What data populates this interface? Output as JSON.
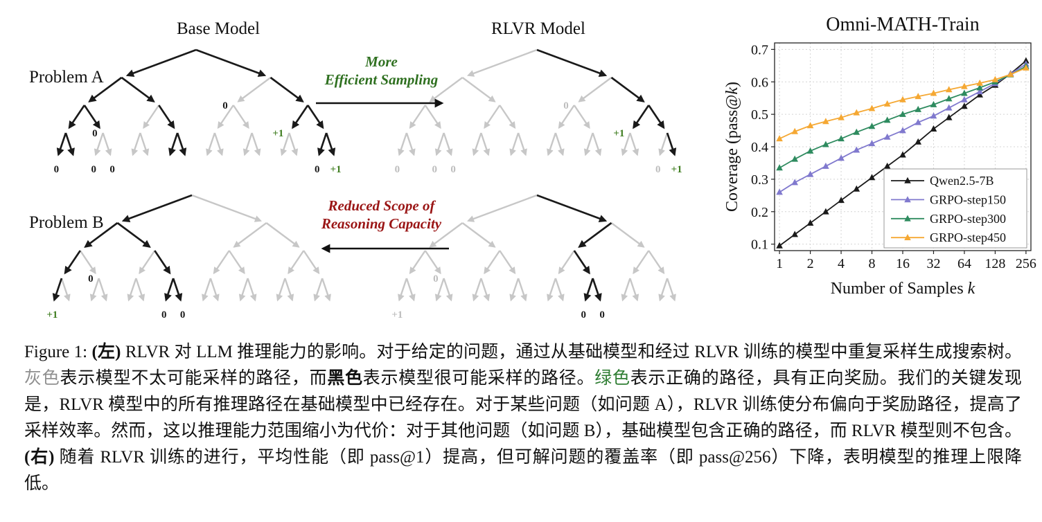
{
  "diagram": {
    "base_model_title": "Base Model",
    "rlvr_model_title": "RLVR Model",
    "problem_a_label": "Problem A",
    "problem_b_label": "Problem B",
    "top_arrow_label": "More\nEfficient Sampling",
    "bottom_arrow_label": "Reduced Scope of\nReasoning Capacity",
    "reward_labels": {
      "positive": "+1",
      "zero": "0"
    },
    "colors": {
      "black": "#1a1a1a",
      "gray": "#c7c7c7",
      "label_gray": "#bdbdbd",
      "green": "#3f7d20",
      "arrow_green": "#2f7020",
      "arrow_red": "#9a1515"
    },
    "trees": {
      "a_base": {
        "black": [
          "r0",
          "r1",
          "r00",
          "r01",
          "r11",
          "r000",
          "r001",
          "r011",
          "r110",
          "r111",
          "r0000",
          "r0001",
          "r0110",
          "r0111",
          "r1110",
          "r1111"
        ],
        "labels": [
          {
            "node": "r001",
            "text": "0",
            "color": "dark",
            "place": "left"
          },
          {
            "node": "r10",
            "text": "0",
            "color": "dark",
            "place": "left"
          },
          {
            "node": "r110",
            "text": "+1",
            "color": "green",
            "place": "left"
          },
          {
            "node": "r0000",
            "text": "0",
            "color": "dark",
            "place": "below"
          },
          {
            "node": "r0010",
            "text": "0",
            "color": "dark",
            "place": "below"
          },
          {
            "node": "r0011",
            "text": "0",
            "color": "dark",
            "place": "below"
          },
          {
            "node": "r1110",
            "text": "0",
            "color": "dark",
            "place": "below"
          },
          {
            "node": "r1111",
            "text": "+1",
            "color": "green",
            "place": "below"
          }
        ]
      },
      "a_rlvr": {
        "black": [
          "r1",
          "r11",
          "r110",
          "r111",
          "r1111"
        ],
        "labels": [
          {
            "node": "r10",
            "text": "0",
            "color": "gray",
            "place": "left"
          },
          {
            "node": "r110",
            "text": "+1",
            "color": "green",
            "place": "left"
          },
          {
            "node": "r0000",
            "text": "0",
            "color": "gray",
            "place": "below"
          },
          {
            "node": "r0010",
            "text": "0",
            "color": "gray",
            "place": "below"
          },
          {
            "node": "r0011",
            "text": "0",
            "color": "gray",
            "place": "below"
          },
          {
            "node": "r1110",
            "text": "0",
            "color": "gray",
            "place": "below"
          },
          {
            "node": "r1111",
            "text": "+1",
            "color": "green",
            "place": "below"
          }
        ]
      },
      "b_base": {
        "black": [
          "r0",
          "r00",
          "r01",
          "r000",
          "r011",
          "r0000",
          "r0110",
          "r0111"
        ],
        "labels": [
          {
            "node": "r001",
            "text": "0",
            "color": "dark",
            "place": "left"
          },
          {
            "node": "r0000",
            "text": "+1",
            "color": "green",
            "place": "below"
          },
          {
            "node": "r0110",
            "text": "0",
            "color": "dark",
            "place": "below"
          },
          {
            "node": "r0111",
            "text": "0",
            "color": "dark",
            "place": "below"
          }
        ]
      },
      "b_rlvr": {
        "black": [
          "r1",
          "r10",
          "r101",
          "r1010",
          "r1011"
        ],
        "labels": [
          {
            "node": "r001",
            "text": "0",
            "color": "gray",
            "place": "left"
          },
          {
            "node": "r0000",
            "text": "+1",
            "color": "gray",
            "place": "below"
          },
          {
            "node": "r1010",
            "text": "0",
            "color": "dark",
            "place": "below"
          },
          {
            "node": "r1011",
            "text": "0",
            "color": "dark",
            "place": "below"
          }
        ]
      }
    }
  },
  "chart_data": {
    "type": "line",
    "title": "Omni-MATH-Train",
    "xlabel": "Number of Samples k",
    "ylabel": "Coverage (pass@k)",
    "xscale": "log2",
    "xticks": [
      1,
      2,
      4,
      8,
      16,
      32,
      64,
      128,
      256
    ],
    "yticks": [
      0.1,
      0.2,
      0.3,
      0.4,
      0.5,
      0.6,
      0.7
    ],
    "ylim": [
      0.1,
      0.7
    ],
    "grid": true,
    "legend_position": "lower right",
    "x": [
      1,
      1.41,
      2,
      2.83,
      4,
      5.66,
      8,
      11.31,
      16,
      22.63,
      32,
      45.25,
      64,
      90.51,
      128,
      181.02,
      256
    ],
    "series": [
      {
        "name": "Qwen2.5-7B",
        "color": "#1a1a1a",
        "marker": "triangle",
        "values": [
          0.095,
          0.13,
          0.165,
          0.2,
          0.235,
          0.27,
          0.305,
          0.34,
          0.375,
          0.415,
          0.455,
          0.49,
          0.525,
          0.56,
          0.59,
          0.625,
          0.665
        ]
      },
      {
        "name": "GRPO-step150",
        "color": "#8079ce",
        "marker": "triangle",
        "values": [
          0.26,
          0.29,
          0.315,
          0.34,
          0.365,
          0.39,
          0.41,
          0.43,
          0.45,
          0.475,
          0.495,
          0.52,
          0.545,
          0.57,
          0.595,
          0.625,
          0.655
        ]
      },
      {
        "name": "GRPO-step300",
        "color": "#2e8b5f",
        "marker": "triangle",
        "values": [
          0.335,
          0.362,
          0.387,
          0.407,
          0.425,
          0.445,
          0.463,
          0.482,
          0.5,
          0.515,
          0.53,
          0.548,
          0.565,
          0.582,
          0.6,
          0.622,
          0.648
        ]
      },
      {
        "name": "GRPO-step450",
        "color": "#f5a833",
        "marker": "triangle",
        "values": [
          0.425,
          0.447,
          0.465,
          0.478,
          0.49,
          0.505,
          0.518,
          0.532,
          0.545,
          0.555,
          0.565,
          0.576,
          0.586,
          0.596,
          0.607,
          0.623,
          0.643
        ]
      }
    ]
  },
  "caption": {
    "segments": [
      {
        "text": "Figure 1: ",
        "style": "normal"
      },
      {
        "text": "(左)",
        "style": "bold"
      },
      {
        "text": " RLVR 对 LLM 推理能力的影响。对于给定的问题，通过从基础模型和经过 RLVR 训练的模型中重复采样生成搜索树。",
        "style": "normal"
      },
      {
        "text": "灰色",
        "style": "gray"
      },
      {
        "text": "表示模型不太可能采样的路径，而",
        "style": "normal"
      },
      {
        "text": "黑色",
        "style": "bold"
      },
      {
        "text": "表示模型很可能采样的路径。",
        "style": "normal"
      },
      {
        "text": "绿色",
        "style": "green"
      },
      {
        "text": "表示正确的路径，具有正向奖励。我们的关键发现是，RLVR 模型中的所有推理路径在基础模型中已经存在。对于某些问题（如问题 A），RLVR 训练使分布偏向于奖励路径，提高了采样效率。然而，这以推理能力范围缩小为代价：对于其他问题（如问题 B），基础模型包含正确的路径，而 RLVR 模型则不包含。",
        "style": "normal"
      },
      {
        "text": "(右)",
        "style": "bold"
      },
      {
        "text": " 随着 RLVR 训练的进行，平均性能（即 pass@1）提高，但可解问题的覆盖率（即 pass@256）下降，表明模型的推理上限降低。",
        "style": "normal"
      }
    ]
  }
}
